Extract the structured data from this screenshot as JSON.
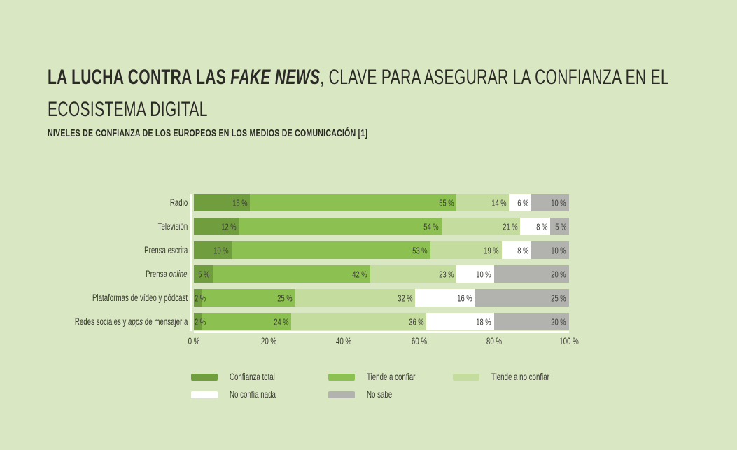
{
  "page": {
    "background": "#d9e8c3",
    "text_color": "#3b3935"
  },
  "header": {
    "title_bold": "LA LUCHA CONTRA LAS ",
    "title_bold_italic": "FAKE NEWS",
    "title_regular_line1": ", CLAVE PARA ASEGURAR LA CONFIANZA EN EL",
    "title_regular_line2": "ECOSISTEMA DIGITAL",
    "subtitle": "NIVELES DE CONFIANZA DE LOS EUROPEOS EN LOS MEDIOS DE COMUNICACIÓN [1]"
  },
  "chart_data": {
    "type": "bar",
    "orientation": "horizontal",
    "stacked": true,
    "xlim": [
      0,
      100
    ],
    "grid": false,
    "value_label_format": "{v} %",
    "x_ticks": [
      "0 %",
      "20 %",
      "40 %",
      "60 %",
      "80 %",
      "100 %"
    ],
    "x_tick_values": [
      0,
      20,
      40,
      60,
      80,
      100
    ],
    "categories": [
      {
        "pre": "Radio",
        "italic": "",
        "post": ""
      },
      {
        "pre": "Televisión",
        "italic": "",
        "post": ""
      },
      {
        "pre": "Prensa escrita",
        "italic": "",
        "post": ""
      },
      {
        "pre": "Prensa ",
        "italic": "online",
        "post": ""
      },
      {
        "pre": "Plataformas de vídeo y pódcast",
        "italic": "",
        "post": ""
      },
      {
        "pre": "Redes sociales y ",
        "italic": "apps",
        "post": " de mensajería"
      }
    ],
    "series": [
      {
        "name": "Confianza total",
        "color": "#709e3e",
        "values": [
          15,
          12,
          10,
          5,
          2,
          2
        ]
      },
      {
        "name": "Tiende a confiar",
        "color": "#8cc151",
        "values": [
          55,
          54,
          53,
          42,
          25,
          24
        ]
      },
      {
        "name": "Tiende a no confiar",
        "color": "#c4dd9e",
        "values": [
          14,
          21,
          19,
          23,
          32,
          36
        ]
      },
      {
        "name": "No confía nada",
        "color": "#ffffff",
        "values": [
          6,
          8,
          8,
          10,
          16,
          18
        ]
      },
      {
        "name": "No sabe",
        "color": "#b2b2af",
        "values": [
          10,
          5,
          10,
          20,
          25,
          20
        ]
      }
    ],
    "legend": {
      "position": "bottom",
      "rows": [
        [
          "Confianza total",
          "Tiende a confiar",
          "Tiende a no confiar"
        ],
        [
          "No confía nada",
          "No sabe"
        ]
      ]
    }
  }
}
